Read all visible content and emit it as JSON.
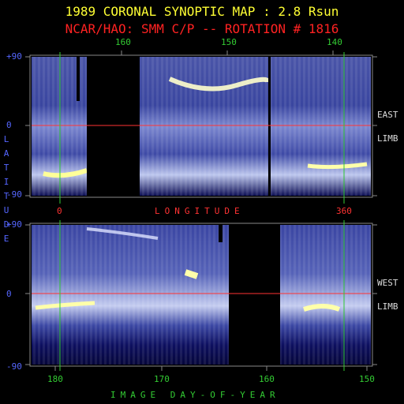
{
  "title": "1989 CORONAL SYNOPTIC MAP : 2.8 Rsun",
  "subtitle": "NCAR/HAO: SMM C/P -- ROTATION # 1816",
  "colors": {
    "title": "#ffff33",
    "subtitle": "#ff2222",
    "axis_green": "#33cc33",
    "axis_blue": "#5566ff",
    "equator": "#ff3333",
    "limb_text": "#dddddd"
  },
  "chart_data": [
    {
      "type": "heatmap",
      "panel": "east-limb",
      "limb_label": [
        "EAST",
        "LIMB"
      ],
      "top_axis_ticks": [
        "160",
        "150",
        "140"
      ],
      "longitude_ticks": [
        "0",
        "360"
      ],
      "longitude_label": "LONGITUDE",
      "lat_ticks": [
        "+90",
        "0",
        "-90"
      ],
      "ylim": [
        -90,
        90
      ]
    },
    {
      "type": "heatmap",
      "panel": "west-limb",
      "limb_label": [
        "WEST",
        "LIMB"
      ],
      "bottom_axis_ticks": [
        "180",
        "170",
        "160",
        "150"
      ],
      "xlabel": "IMAGE DAY-OF-YEAR",
      "lat_ticks": [
        "+90",
        "0",
        "-90"
      ],
      "ylim": [
        -90,
        90
      ]
    }
  ],
  "ylabel_letters": [
    "L",
    "A",
    "T",
    "I",
    "T",
    "U",
    "D",
    "E"
  ]
}
